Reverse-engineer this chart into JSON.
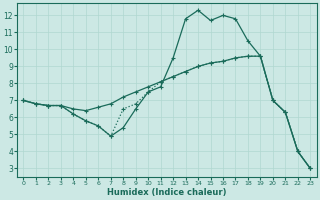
{
  "xlabel": "Humidex (Indice chaleur)",
  "bg_color": "#cce8e4",
  "line_color": "#1a6b5a",
  "grid_color": "#b0d8d0",
  "xlim": [
    -0.5,
    23.5
  ],
  "ylim": [
    2.5,
    12.7
  ],
  "xticks": [
    0,
    1,
    2,
    3,
    4,
    5,
    6,
    7,
    8,
    9,
    10,
    11,
    12,
    13,
    14,
    15,
    16,
    17,
    18,
    19,
    20,
    21,
    22,
    23
  ],
  "yticks": [
    3,
    4,
    5,
    6,
    7,
    8,
    9,
    10,
    11,
    12
  ],
  "line1_x": [
    0,
    1,
    2,
    3,
    4,
    5,
    6,
    7,
    8,
    9,
    10,
    11,
    12,
    13,
    14,
    15,
    16,
    17,
    18,
    19,
    20,
    21,
    22,
    23
  ],
  "line1_y": [
    7.0,
    6.8,
    6.7,
    6.7,
    6.2,
    5.8,
    5.5,
    4.9,
    5.4,
    6.5,
    7.5,
    7.8,
    9.5,
    11.8,
    12.3,
    11.7,
    12.0,
    11.8,
    10.5,
    9.6,
    7.0,
    6.3,
    4.0,
    3.0
  ],
  "line2_x": [
    0,
    1,
    2,
    3,
    4,
    5,
    6,
    7,
    8,
    9,
    10,
    11,
    12,
    13,
    14,
    15,
    16,
    17,
    18,
    19,
    20,
    21,
    22,
    23
  ],
  "line2_y": [
    7.0,
    6.8,
    6.7,
    6.7,
    6.5,
    6.4,
    6.6,
    6.8,
    7.2,
    7.5,
    7.8,
    8.1,
    8.4,
    8.7,
    9.0,
    9.2,
    9.3,
    9.5,
    9.6,
    9.6,
    7.0,
    6.3,
    4.0,
    3.0
  ],
  "line3_x": [
    0,
    1,
    2,
    3,
    4,
    5,
    6,
    7,
    8,
    9,
    10,
    11,
    12,
    13,
    14,
    15,
    16,
    17,
    18,
    19,
    20,
    21,
    22,
    23
  ],
  "line3_y": [
    7.0,
    6.8,
    6.7,
    6.7,
    6.2,
    5.8,
    5.5,
    4.9,
    6.5,
    6.8,
    7.5,
    8.1,
    8.4,
    8.7,
    9.0,
    9.2,
    9.3,
    9.5,
    9.6,
    9.6,
    7.0,
    6.3,
    4.0,
    3.0
  ]
}
